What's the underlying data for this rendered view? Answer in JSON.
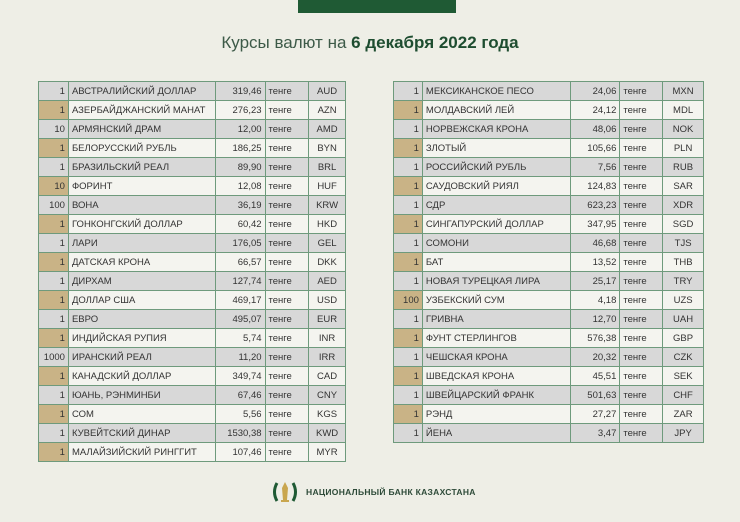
{
  "title": {
    "prefix": "Курсы валют на ",
    "date": "6 декабря 2022 года"
  },
  "unit": "тенге",
  "left": [
    [
      "1",
      "АВСТРАЛИЙСКИЙ ДОЛЛАР",
      "319,46",
      "AUD"
    ],
    [
      "1",
      "АЗЕРБАЙДЖАНСКИЙ МАНАТ",
      "276,23",
      "AZN"
    ],
    [
      "10",
      "АРМЯНСКИЙ  ДРАМ",
      "12,00",
      "AMD"
    ],
    [
      "1",
      "БЕЛОРУССКИЙ РУБЛЬ",
      "186,25",
      "BYN"
    ],
    [
      "1",
      "БРАЗИЛЬСКИЙ РЕАЛ",
      "89,90",
      "BRL"
    ],
    [
      "10",
      "ФОРИНТ",
      "12,08",
      "HUF"
    ],
    [
      "100",
      "ВОНА",
      "36,19",
      "KRW"
    ],
    [
      "1",
      "ГОНКОНГСКИЙ ДОЛЛАР",
      "60,42",
      "HKD"
    ],
    [
      "1",
      "ЛАРИ",
      "176,05",
      "GEL"
    ],
    [
      "1",
      "ДАТСКАЯ КРОНА",
      "66,57",
      "DKK"
    ],
    [
      "1",
      "ДИРХАМ",
      "127,74",
      "AED"
    ],
    [
      "1",
      "ДОЛЛАР США",
      "469,17",
      "USD"
    ],
    [
      "1",
      "ЕВРО",
      "495,07",
      "EUR"
    ],
    [
      "1",
      "ИНДИЙСКАЯ РУПИЯ",
      "5,74",
      "INR"
    ],
    [
      "1000",
      "ИРАНСКИЙ РЕАЛ",
      "11,20",
      "IRR"
    ],
    [
      "1",
      "КАНАДСКИЙ ДОЛЛАР",
      "349,74",
      "CAD"
    ],
    [
      "1",
      "ЮАНЬ, РЭНМИНБИ",
      "67,46",
      "CNY"
    ],
    [
      "1",
      "СОМ",
      "5,56",
      "KGS"
    ],
    [
      "1",
      "КУВЕЙТСКИЙ ДИНАР",
      "1530,38",
      "KWD"
    ],
    [
      "1",
      "МАЛАЙЗИЙСКИЙ РИНГГИТ",
      "107,46",
      "MYR"
    ]
  ],
  "right": [
    [
      "1",
      "МЕКСИКАНСКОЕ ПЕСО",
      "24,06",
      "MXN"
    ],
    [
      "1",
      "МОЛДАВСКИЙ ЛЕЙ",
      "24,12",
      "MDL"
    ],
    [
      "1",
      "НОРВЕЖСКАЯ КРОНА",
      "48,06",
      "NOK"
    ],
    [
      "1",
      "ЗЛОТЫЙ",
      "105,66",
      "PLN"
    ],
    [
      "1",
      "РОССИЙСКИЙ РУБЛЬ",
      "7,56",
      "RUB"
    ],
    [
      "1",
      "САУДОВСКИЙ РИЯЛ",
      "124,83",
      "SAR"
    ],
    [
      "1",
      "СДР",
      "623,23",
      "XDR"
    ],
    [
      "1",
      "СИНГАПУРСКИЙ ДОЛЛАР",
      "347,95",
      "SGD"
    ],
    [
      "1",
      "СОМОНИ",
      "46,68",
      "TJS"
    ],
    [
      "1",
      "БАТ",
      "13,52",
      "THB"
    ],
    [
      "1",
      "НОВАЯ ТУРЕЦКАЯ ЛИРА",
      "25,17",
      "TRY"
    ],
    [
      "100",
      "УЗБЕКСКИЙ СУМ",
      "4,18",
      "UZS"
    ],
    [
      "1",
      "ГРИВНА",
      "12,70",
      "UAH"
    ],
    [
      "1",
      "ФУНТ СТЕРЛИНГОВ",
      "576,38",
      "GBP"
    ],
    [
      "1",
      "ЧЕШСКАЯ КРОНА",
      "20,32",
      "CZK"
    ],
    [
      "1",
      "ШВЕДСКАЯ КРОНА",
      "45,51",
      "SEK"
    ],
    [
      "1",
      "ШВЕЙЦАРСКИЙ ФРАНК",
      "501,63",
      "CHF"
    ],
    [
      "1",
      "РЭНД",
      "27,27",
      "ZAR"
    ],
    [
      "1",
      "ЙЕНА",
      "3,47",
      "JPY"
    ]
  ],
  "footer": {
    "bank_name": "НАЦИОНАЛЬНЫЙ БАНК КАЗАХСТАНА",
    "logo_icon": "bank-emblem-icon"
  },
  "colors": {
    "brand_green": "#1f5a34",
    "accent_tan": "#c9b386"
  }
}
